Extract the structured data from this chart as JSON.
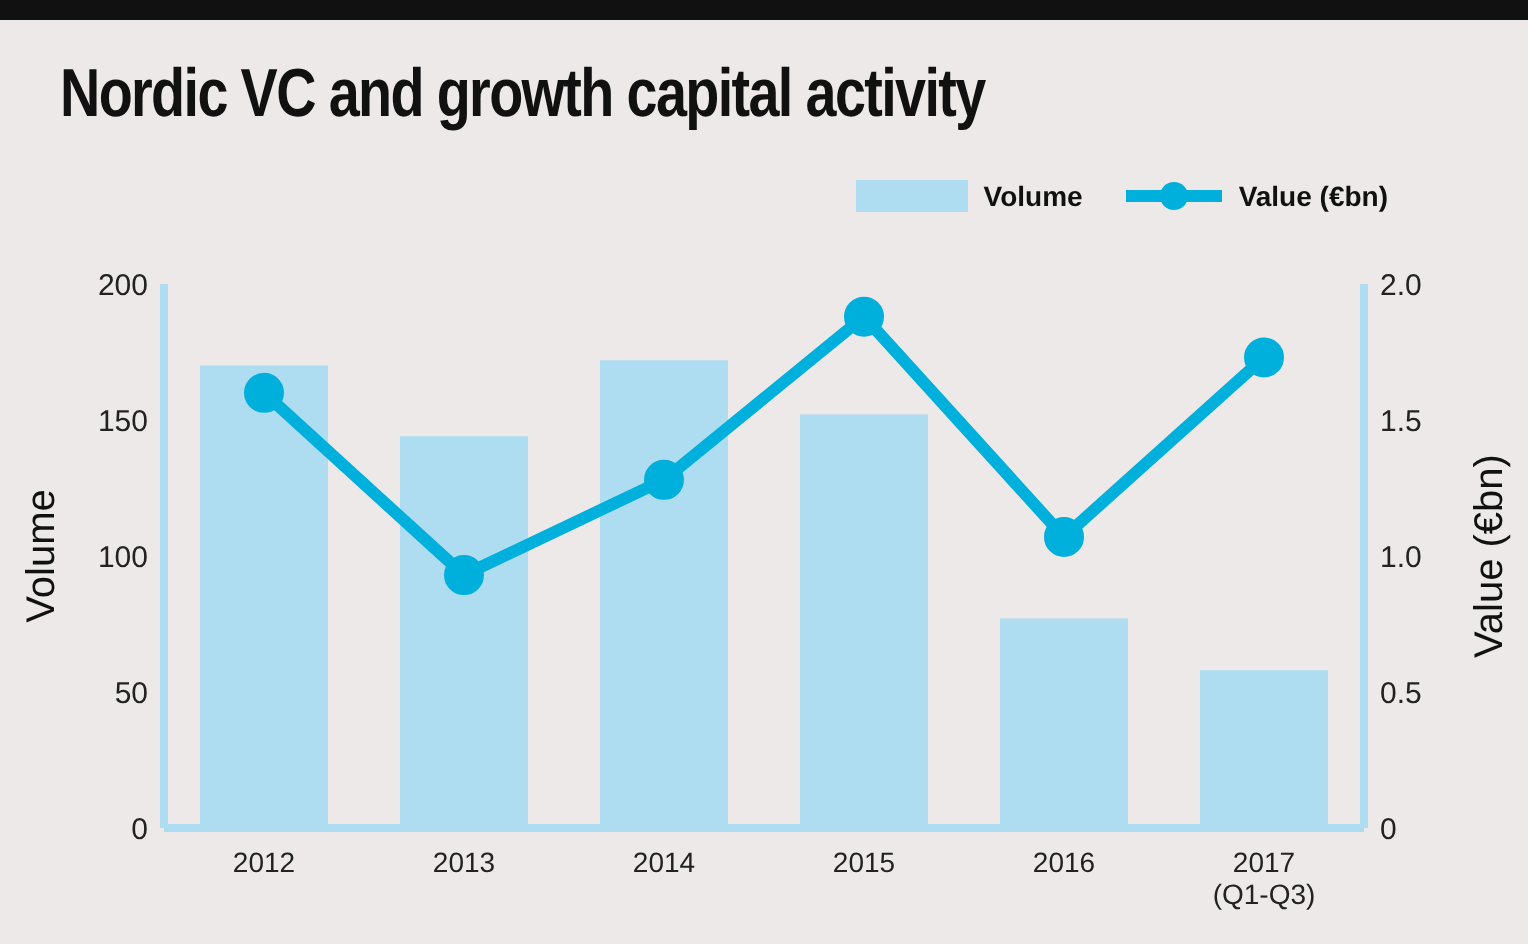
{
  "chart_data": {
    "type": "bar",
    "title": "Nordic VC and growth capital activity",
    "categories": [
      "2012",
      "2013",
      "2014",
      "2015",
      "2016",
      "2017\n(Q1-Q3)"
    ],
    "series": [
      {
        "name": "Volume",
        "color": "#aedcf0",
        "values": [
          170,
          144,
          172,
          152,
          77,
          58
        ]
      },
      {
        "name": "Value (€bn)",
        "type": "line",
        "axis": "y2",
        "color": "#00b0dc",
        "values": [
          1.6,
          0.93,
          1.28,
          1.88,
          1.07,
          1.73
        ]
      }
    ],
    "ylabel": "Volume",
    "y2label": "Value (€bn)",
    "ylim": [
      0,
      200
    ],
    "yticks": [
      0,
      50,
      100,
      150,
      200
    ],
    "y2lim": [
      0,
      2.0
    ],
    "y2ticks": [
      {
        "value": 0,
        "label": "0"
      },
      {
        "value": 0.5,
        "label": "0.5"
      },
      {
        "value": 1.0,
        "label": "1.0"
      },
      {
        "value": 1.5,
        "label": "1.5"
      },
      {
        "value": 2.0,
        "label": "2.0"
      }
    ],
    "legend": "top right",
    "marker": "circle",
    "grid": false
  }
}
